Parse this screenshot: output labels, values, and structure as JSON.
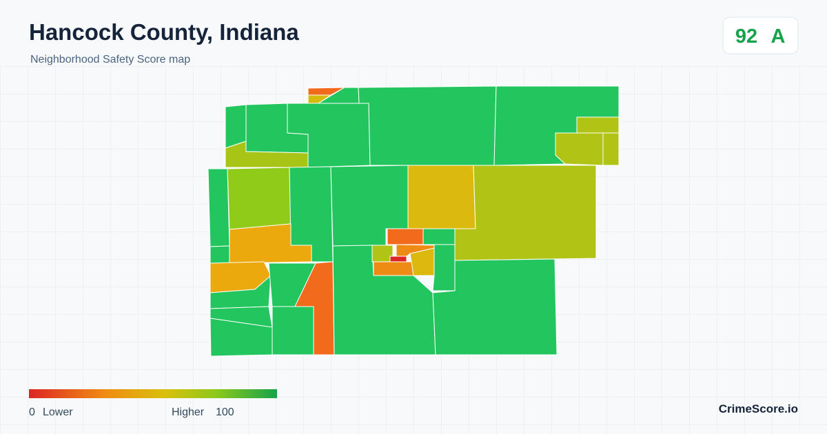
{
  "header": {
    "title": "Hancock County, Indiana",
    "subtitle": "Neighborhood Safety Score map"
  },
  "score": {
    "value": 92,
    "grade": "A"
  },
  "legend": {
    "min": 0,
    "min_label": "Lower",
    "max_label": "Higher",
    "max": 100
  },
  "brand": "CrimeScore.io"
}
